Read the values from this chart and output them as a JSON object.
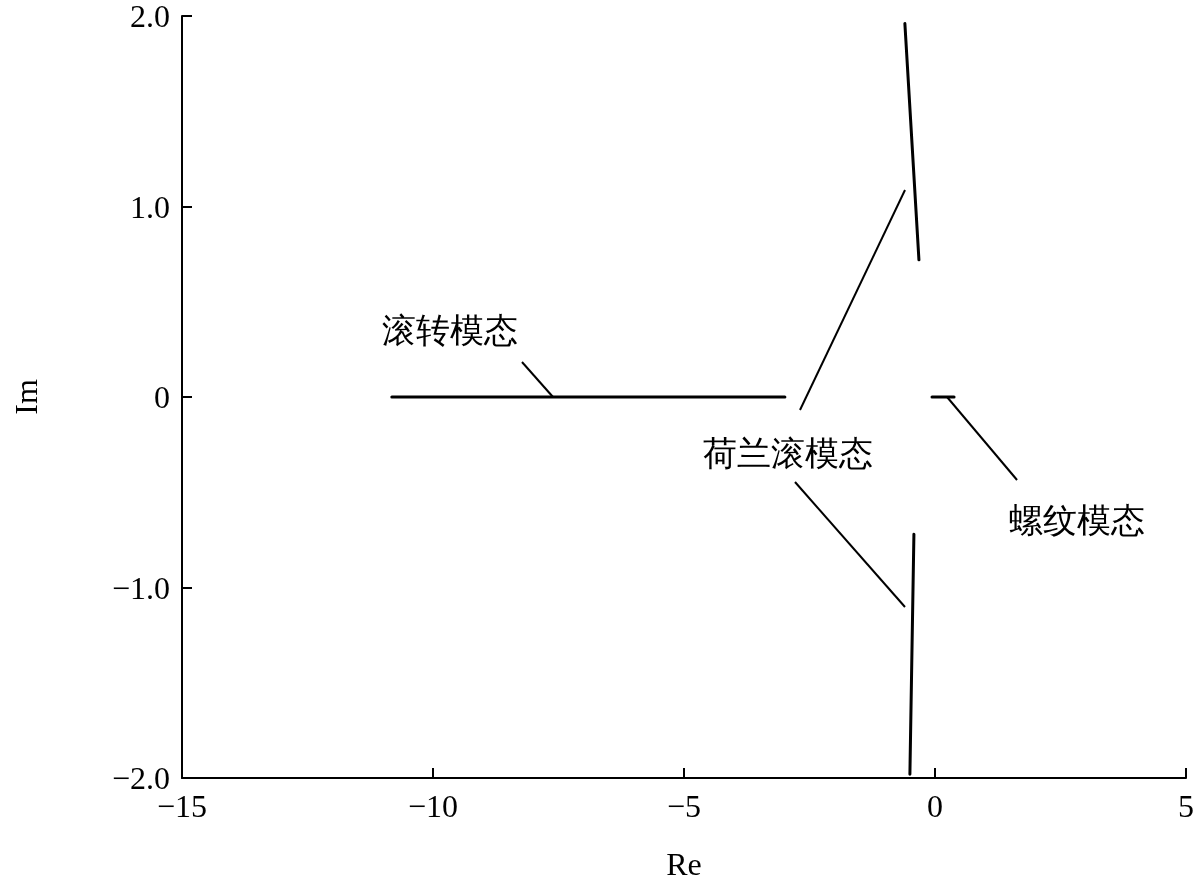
{
  "chart_data": {
    "type": "line",
    "xlabel": "Re",
    "ylabel": "Im",
    "xlim": [
      -15,
      5
    ],
    "xticks": [
      {
        "value": -15,
        "label": "−15"
      },
      {
        "value": -10,
        "label": "−10"
      },
      {
        "value": -5,
        "label": "−5"
      },
      0,
      5
    ],
    "ylim": [
      -2,
      2
    ],
    "yticks": [
      {
        "value": -2,
        "label": "−2.0"
      },
      {
        "value": -1,
        "label": "−1.0"
      },
      0,
      {
        "value": 1,
        "label": "1.0"
      },
      {
        "value": 2,
        "label": "2.0"
      }
    ],
    "grid": false,
    "marker": "none",
    "line_style": "solid",
    "series": [
      {
        "color": "#000000",
        "x": [
          -10.82,
          -2.99
        ],
        "values": [
          0,
          0
        ]
      },
      {
        "color": "#000000",
        "x": [
          -0.6,
          -0.32
        ],
        "values": [
          1.96,
          0.72
        ]
      },
      {
        "color": "#000000",
        "x": [
          -0.42,
          -0.5
        ],
        "values": [
          -0.72,
          -1.98
        ]
      },
      {
        "color": "#000000",
        "x": [
          -0.06,
          0.38
        ],
        "values": [
          0,
          0
        ]
      }
    ],
    "annotations": [
      {
        "text": "滚转模态",
        "x": -7.61,
        "y": 0
      },
      "荷兰滚模态",
      {
        "text": "螺纹模态",
        "x": 0.24,
        "y": 0
      }
    ]
  }
}
